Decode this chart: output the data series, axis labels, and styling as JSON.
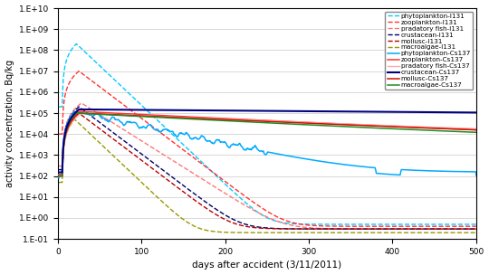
{
  "title": "",
  "xlabel": "days after accident (3/11/2011)",
  "ylabel": "activity concentration, Bq/kg",
  "xlim": [
    0,
    500
  ],
  "ylim_log": [
    -1,
    10
  ],
  "figsize": [
    5.4,
    3.04
  ],
  "dpi": 100,
  "series": [
    {
      "label": "phytoplankton-I131",
      "color": "#00CCFF",
      "linestyle": "--",
      "linewidth": 1.0,
      "zorder": 3
    },
    {
      "label": "zooplankton-I131",
      "color": "#FF3333",
      "linestyle": "--",
      "linewidth": 1.0,
      "zorder": 3
    },
    {
      "label": "pradatory fish-I131",
      "color": "#FF7777",
      "linestyle": "--",
      "linewidth": 1.0,
      "zorder": 3
    },
    {
      "label": "crustacean-I131",
      "color": "#000066",
      "linestyle": "--",
      "linewidth": 1.0,
      "zorder": 3
    },
    {
      "label": "mollusc-I131",
      "color": "#BB0000",
      "linestyle": "--",
      "linewidth": 1.0,
      "zorder": 3
    },
    {
      "label": "macroalgae-I131",
      "color": "#999900",
      "linestyle": "--",
      "linewidth": 1.0,
      "zorder": 3
    },
    {
      "label": "phytoplankton-Cs137",
      "color": "#00AAFF",
      "linestyle": "-",
      "linewidth": 1.1,
      "zorder": 4
    },
    {
      "label": "zooplankton-Cs137",
      "color": "#FF3333",
      "linestyle": "-",
      "linewidth": 1.1,
      "zorder": 4
    },
    {
      "label": "pradatory fish-Cs137",
      "color": "#FFAAAA",
      "linestyle": "-",
      "linewidth": 1.0,
      "zorder": 4
    },
    {
      "label": "crustacean-Cs137",
      "color": "#000080",
      "linestyle": "-",
      "linewidth": 1.5,
      "zorder": 5
    },
    {
      "label": "mollusc-Cs137",
      "color": "#CC1100",
      "linestyle": "-",
      "linewidth": 1.1,
      "zorder": 4
    },
    {
      "label": "macroalgae-Cs137",
      "color": "#228B22",
      "linestyle": "-",
      "linewidth": 1.1,
      "zorder": 4
    }
  ]
}
